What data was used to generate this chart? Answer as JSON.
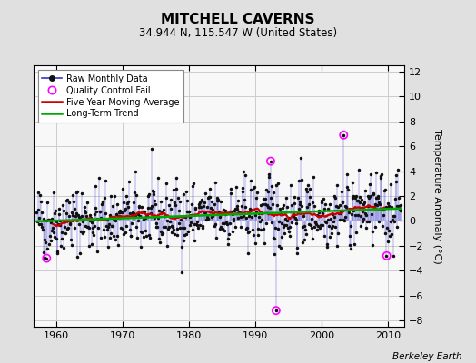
{
  "title": "MITCHELL CAVERNS",
  "subtitle": "34.944 N, 115.547 W (United States)",
  "ylabel": "Temperature Anomaly (°C)",
  "attribution": "Berkeley Earth",
  "start_year": 1957,
  "end_year": 2012,
  "ylim": [
    -8.5,
    12.5
  ],
  "yticks": [
    -8,
    -6,
    -4,
    -2,
    0,
    2,
    4,
    6,
    8,
    10,
    12
  ],
  "xticks": [
    1960,
    1970,
    1980,
    1990,
    2000,
    2010
  ],
  "bg_color": "#e0e0e0",
  "plot_bg_color": "#f8f8f8",
  "raw_line_color": "#3333cc",
  "raw_marker_color": "#111111",
  "qc_fail_color": "#ff00ff",
  "moving_avg_color": "#cc0000",
  "trend_color": "#00aa00",
  "seed": 42,
  "qc_fail_times": [
    1958.5,
    1992.3,
    1993.1,
    2003.3,
    2009.8
  ],
  "qc_fail_values": [
    -3.0,
    4.8,
    -7.2,
    6.9,
    -2.8
  ]
}
